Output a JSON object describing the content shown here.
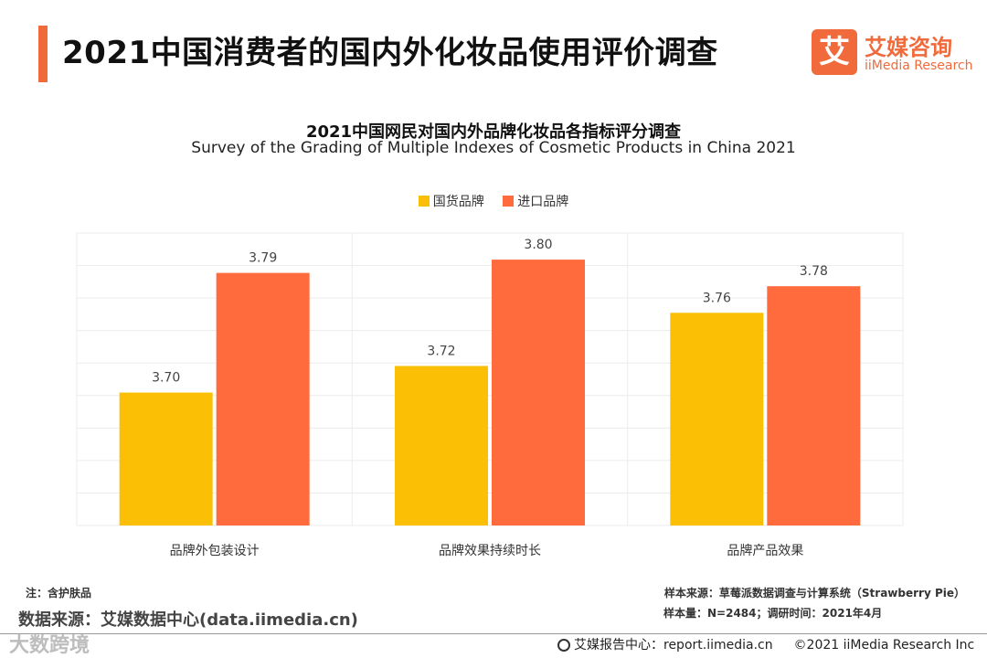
{
  "header": {
    "title": "2021中国消费者的国内外化妆品使用评价调查",
    "logo_badge": "艾",
    "logo_cn": "艾媒咨询",
    "logo_en": "iiMedia Research"
  },
  "colors": {
    "accent": "#f06a3b",
    "domestic": "#fbbf06",
    "imported": "#ff6b3d"
  },
  "chart_data": {
    "type": "bar",
    "title": "2021中国网民对国内外品牌化妆品各指标评分调查",
    "subtitle": "Survey of the Grading of Multiple Indexes of Cosmetic Products in China 2021",
    "categories": [
      "品牌外包装设计",
      "品牌效果持续时长",
      "品牌产品效果"
    ],
    "series": [
      {
        "name": "国货品牌",
        "values": [
          3.7,
          3.72,
          3.76
        ],
        "labels": [
          "3.70",
          "3.72",
          "3.76"
        ]
      },
      {
        "name": "进口品牌",
        "values": [
          3.79,
          3.8,
          3.78
        ],
        "labels": [
          "3.79",
          "3.80",
          "3.78"
        ]
      }
    ],
    "ylim": [
      3.6,
      3.82
    ],
    "grid": true,
    "legend": "top-center"
  },
  "footer": {
    "note": "注：含护肤品",
    "datasource": "数据来源：艾媒数据中心(data.iimedia.cn)",
    "sample_source": "样本来源：草莓派数据调查与计算系统（Strawberry Pie）",
    "sample_size": "样本量：N=2484；调研时间：2021年4月",
    "report_center": "艾媒报告中心：report.iimedia.cn",
    "copyright": "©2021  iiMedia Research  Inc",
    "watermark": "大数跨境"
  }
}
